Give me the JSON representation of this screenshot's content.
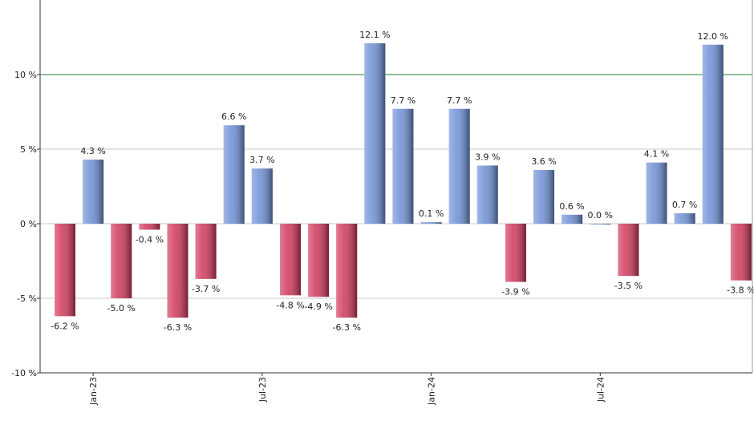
{
  "chart_data": {
    "type": "bar",
    "categories": [
      null,
      "Jan-23",
      null,
      null,
      null,
      null,
      null,
      "Jul-23",
      null,
      null,
      null,
      null,
      null,
      "Jan-24",
      null,
      null,
      null,
      null,
      null,
      "Jul-24",
      null,
      null,
      null,
      null,
      null
    ],
    "values": [
      -6.2,
      4.3,
      -5.0,
      -0.4,
      -6.3,
      -3.7,
      6.6,
      3.7,
      -4.8,
      -4.9,
      -6.3,
      12.1,
      7.7,
      0.1,
      7.7,
      3.9,
      -3.9,
      3.6,
      0.6,
      0.0,
      -3.5,
      4.1,
      0.7,
      12.0,
      -3.8
    ],
    "value_labels": [
      "-6.2 %",
      "4.3 %",
      "-5.0 %",
      "-0.4 %",
      "-6.3 %",
      "-3.7 %",
      "6.6 %",
      "3.7 %",
      "-4.8 %",
      "-4.9 %",
      "-6.3 %",
      "12.1 %",
      "7.7 %",
      "0.1 %",
      "7.7 %",
      "3.9 %",
      "-3.9 %",
      "3.6 %",
      "0.6 %",
      "0.0 %",
      "-3.5 %",
      "4.1 %",
      "0.7 %",
      "12.0 %",
      "-3.8 %"
    ],
    "positive_color": "#6d8fd6",
    "negative_color": "#d0365a",
    "ylim": [
      -10,
      15
    ],
    "yticks": [
      {
        "value": -10,
        "label": "-10 %"
      },
      {
        "value": -5,
        "label": "-5 %"
      },
      {
        "value": 0,
        "label": "0 %"
      },
      {
        "value": 5,
        "label": "5 %"
      },
      {
        "value": 10,
        "label": "10 %"
      }
    ],
    "reference_line": {
      "value": 10,
      "color": "#2e7d32"
    },
    "grid": true
  }
}
